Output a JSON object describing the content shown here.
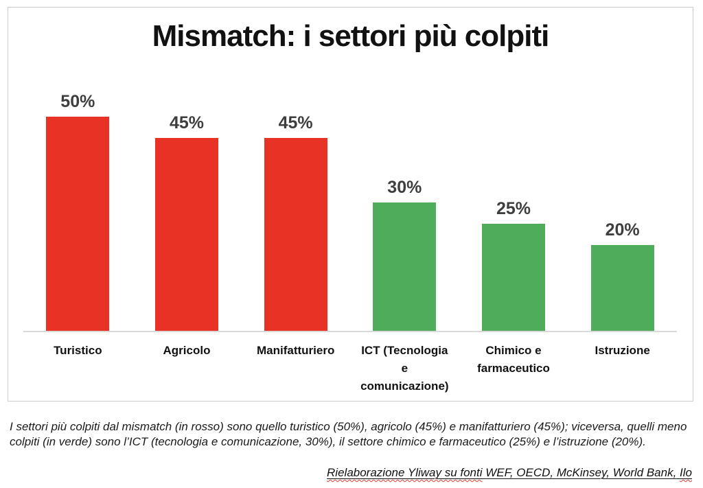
{
  "chart": {
    "title": "Mismatch: i settori più colpiti"
  },
  "chart_data": {
    "type": "bar",
    "title": "Mismatch: i settori più colpiti",
    "categories": [
      "Turistico",
      "Agricolo",
      "Manifatturiero",
      "ICT (Tecnologia e comunicazione)",
      "Chimico e farmaceutico",
      "Istruzione"
    ],
    "values": [
      50,
      45,
      45,
      30,
      25,
      20
    ],
    "value_labels": [
      "50%",
      "45%",
      "45%",
      "30%",
      "25%",
      "20%"
    ],
    "bar_colors": [
      "#E93226",
      "#E93226",
      "#E93226",
      "#4FAC5B",
      "#4FAC5B",
      "#4FAC5B"
    ],
    "xlabel": "",
    "ylabel": "",
    "ylim": [
      0,
      50
    ],
    "grid": false,
    "legend": false,
    "value_label_position": "above-bar",
    "colors": {
      "most_affected_red": "#E93226",
      "least_affected_green": "#4FAC5B",
      "value_label_gray": "#3E3E3E",
      "axis_line_gray": "#D9D9D9"
    }
  },
  "caption": {
    "text": "I settori più colpiti dal mismatch (in rosso) sono quello turistico (50%), agricolo (45%) e manifatturiero (45%); viceversa, quelli meno colpiti (in verde) sono l’ICT (tecnologia e comunicazione, 30%), il settore chimico e farmaceutico (25%) e l’istruzione (20%)."
  },
  "source": {
    "spellchecked_lead": "Rielaborazione Yliway su fonti",
    "middle": "WEF, OECD, McKinsey, World Bank,",
    "spellchecked_tail": "Ilo"
  }
}
